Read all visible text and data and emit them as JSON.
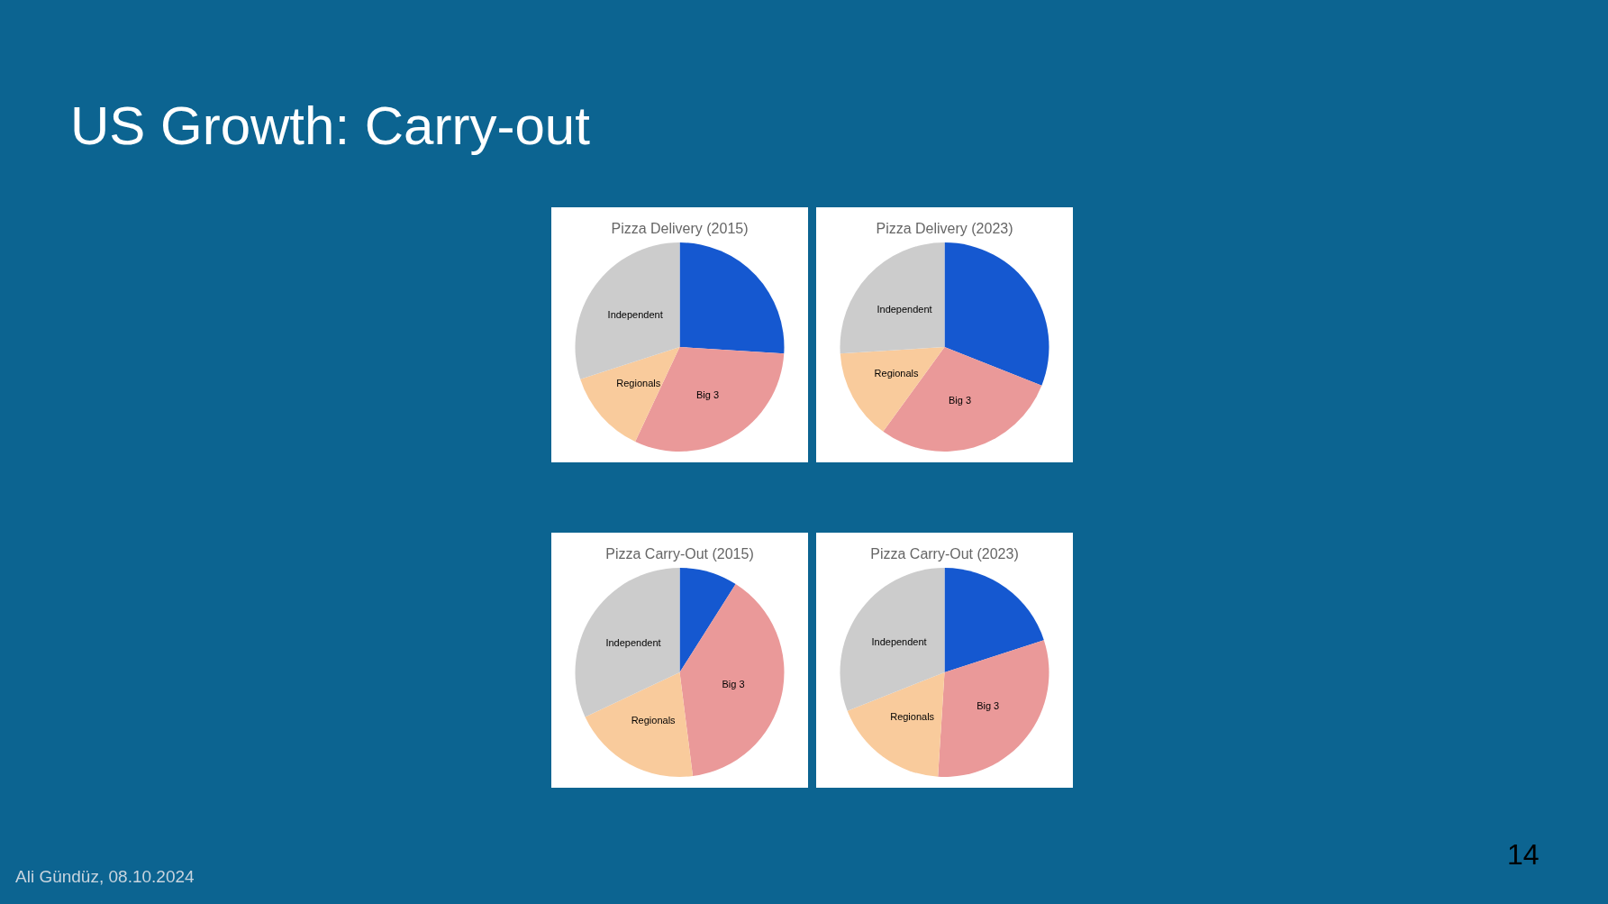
{
  "chart_data": [
    {
      "type": "other",
      "title": "US Growth: Carry-out",
      "annotations": [
        "Ali Gündüz, 08.10.2024",
        "14"
      ]
    },
    {
      "type": "pie",
      "title": "Pizza Delivery (2015)",
      "categories": [
        null,
        "Big 3",
        "Regionals",
        "Independent"
      ],
      "values": [
        26,
        31,
        13,
        30
      ],
      "colors": [
        "#1558d0",
        "#ea9999",
        "#f9cb9c",
        "#cccccc"
      ]
    },
    {
      "type": "pie",
      "title": "Pizza Delivery (2023)",
      "categories": [
        null,
        "Big 3",
        "Regionals",
        "Independent"
      ],
      "values": [
        31,
        29,
        14,
        26
      ],
      "colors": [
        "#1558d0",
        "#ea9999",
        "#f9cb9c",
        "#cccccc"
      ]
    },
    {
      "type": "pie",
      "title": "Pizza Carry-Out (2015)",
      "categories": [
        null,
        "Big 3",
        "Regionals",
        "Independent"
      ],
      "values": [
        9,
        39,
        20,
        32
      ],
      "colors": [
        "#1558d0",
        "#ea9999",
        "#f9cb9c",
        "#cccccc"
      ]
    },
    {
      "type": "pie",
      "title": "Pizza Carry-Out (2023)",
      "categories": [
        null,
        "Big 3",
        "Regionals",
        "Independent"
      ],
      "values": [
        20,
        31,
        18,
        31
      ],
      "colors": [
        "#1558d0",
        "#ea9999",
        "#f9cb9c",
        "#cccccc"
      ]
    }
  ]
}
